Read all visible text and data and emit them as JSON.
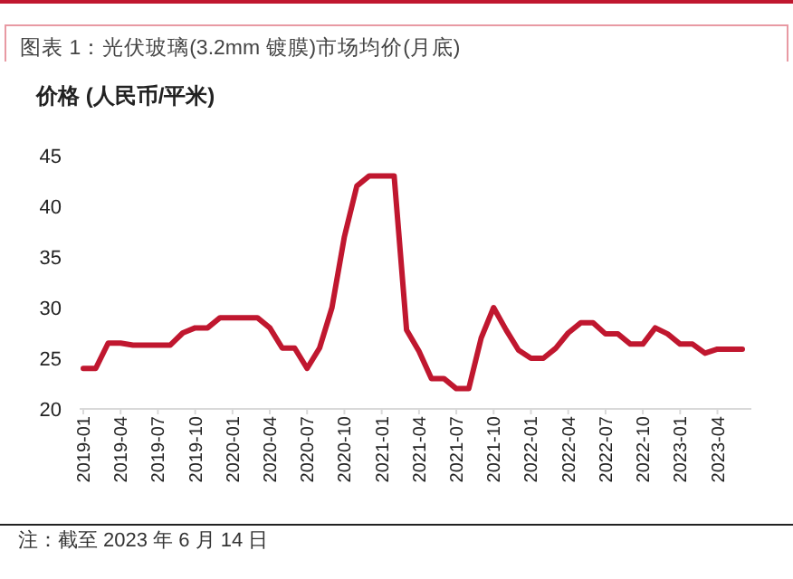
{
  "chart_data": {
    "type": "line",
    "title": "图表 1：光伏玻璃(3.2mm 镀膜)市场均价(月底)",
    "ylabel": "价格 (人民币/平米)",
    "categories": [
      "2019-01",
      null,
      null,
      "2019-04",
      null,
      null,
      "2019-07",
      null,
      null,
      "2019-10",
      null,
      null,
      "2020-01",
      null,
      null,
      "2020-04",
      null,
      null,
      "2020-07",
      null,
      null,
      "2020-10",
      null,
      null,
      "2021-01",
      null,
      null,
      "2021-04",
      null,
      null,
      "2021-07",
      null,
      null,
      "2021-10",
      null,
      null,
      "2022-01",
      null,
      null,
      "2022-04",
      null,
      null,
      "2022-07",
      null,
      null,
      "2022-10",
      null,
      null,
      "2023-01",
      null,
      null,
      "2023-04",
      null,
      null
    ],
    "series": [
      {
        "color": "#c0172f",
        "values": [
          24,
          24,
          26.5,
          26.5,
          26.3,
          26.3,
          26.3,
          26.3,
          27.5,
          28,
          28,
          29,
          29,
          29,
          29,
          28,
          26,
          26,
          24,
          26,
          30,
          37,
          42,
          43,
          43,
          43,
          27.8,
          25.7,
          23,
          23,
          22,
          22,
          27,
          30,
          27.8,
          25.8,
          25,
          25,
          26,
          27.5,
          28.5,
          28.5,
          27.4,
          27.4,
          26.4,
          26.4,
          28,
          27.4,
          26.4,
          26.4,
          25.5,
          25.9,
          25.9,
          25.9
        ]
      }
    ],
    "ylim": [
      20,
      45
    ],
    "yticks": [
      20,
      25,
      30,
      35,
      40,
      45
    ],
    "grid": false,
    "annotations": [
      "注：截至 2023 年 6 月 14 日"
    ]
  }
}
